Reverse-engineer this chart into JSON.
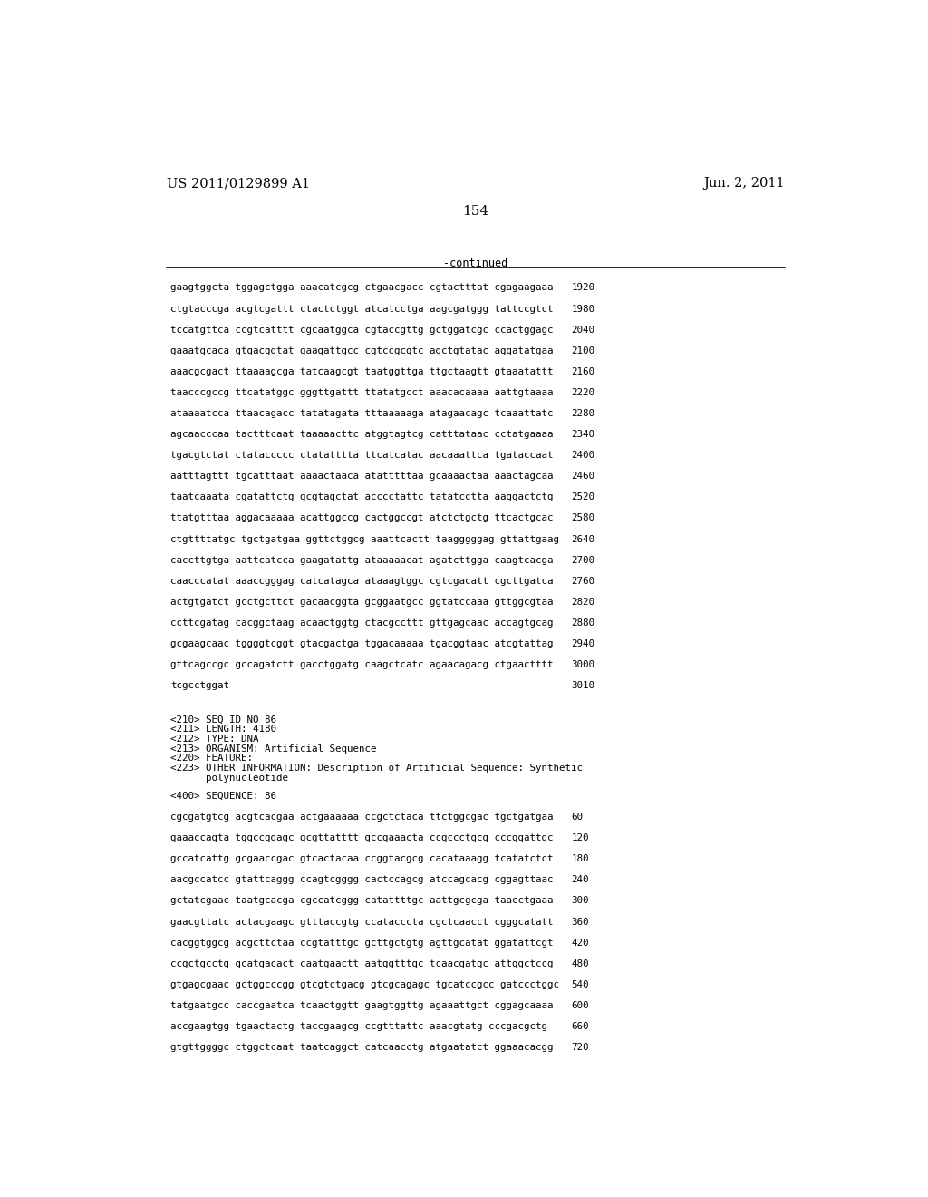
{
  "header_left": "US 2011/0129899 A1",
  "header_right": "Jun. 2, 2011",
  "page_number": "154",
  "continued_label": "-continued",
  "background_color": "#ffffff",
  "text_color": "#000000",
  "sequence_lines_top": [
    [
      "gaagtggcta tggagctgga aaacatcgcg ctgaacgacc cgtactttat cgagaagaaa",
      "1920"
    ],
    [
      "ctgtacccga acgtcgattt ctactctggt atcatcctga aagcgatggg tattccgtct",
      "1980"
    ],
    [
      "tccatgttca ccgtcatttt cgcaatggca cgtaccgttg gctggatcgc ccactggagc",
      "2040"
    ],
    [
      "gaaatgcaca gtgacggtat gaagattgcc cgtccgcgtc agctgtatac aggatatgaa",
      "2100"
    ],
    [
      "aaacgcgact ttaaaagcga tatcaagcgt taatggttga ttgctaagtt gtaaatattt",
      "2160"
    ],
    [
      "taacccgccg ttcatatggc gggttgattt ttatatgcct aaacacaaaa aattgtaaaa",
      "2220"
    ],
    [
      "ataaaatcca ttaacagacc tatatagata tttaaaaaga atagaacagc tcaaattatc",
      "2280"
    ],
    [
      "agcaacccaa tactttcaat taaaaacttc atggtagtcg catttataac cctatgaaaa",
      "2340"
    ],
    [
      "tgacgtctat ctataccccc ctatatttta ttcatcatac aacaaattca tgataccaat",
      "2400"
    ],
    [
      "aatttagttt tgcatttaat aaaactaaca atatttttaa gcaaaactaa aaactagcaa",
      "2460"
    ],
    [
      "taatcaaata cgatattctg gcgtagctat acccctattc tatatcctta aaggactctg",
      "2520"
    ],
    [
      "ttatgtttaa aggacaaaaa acattggccg cactggccgt atctctgctg ttcactgcac",
      "2580"
    ],
    [
      "ctgttttatgc tgctgatgaa ggttctggcg aaattcactt taagggggag gttattgaag",
      "2640"
    ],
    [
      "caccttgtga aattcatcca gaagatattg ataaaaacat agatcttgga caagtcacga",
      "2700"
    ],
    [
      "caacccatat aaaccgggag catcatagca ataaagtggc cgtcgacatt cgcttgatca",
      "2760"
    ],
    [
      "actgtgatct gcctgcttct gacaacggta gcggaatgcc ggtatccaaa gttggcgtaa",
      "2820"
    ],
    [
      "ccttcgatag cacggctaag acaactggtg ctacgccttt gttgagcaac accagtgcag",
      "2880"
    ],
    [
      "gcgaagcaac tggggtcggt gtacgactga tggacaaaaa tgacggtaac atcgtattag",
      "2940"
    ],
    [
      "gttcagccgc gccagatctt gacctggatg caagctcatc agaacagacg ctgaactttt",
      "3000"
    ],
    [
      "tcgcctggat",
      "3010"
    ]
  ],
  "metadata_lines": [
    "<210> SEQ ID NO 86",
    "<211> LENGTH: 4180",
    "<212> TYPE: DNA",
    "<213> ORGANISM: Artificial Sequence",
    "<220> FEATURE:",
    "<223> OTHER INFORMATION: Description of Artificial Sequence: Synthetic",
    "      polynucleotide"
  ],
  "sequence_label": "<400> SEQUENCE: 86",
  "sequence_lines_bottom": [
    [
      "cgcgatgtcg acgtcacgaa actgaaaaaa ccgctctaca ttctggcgac tgctgatgaa",
      "60"
    ],
    [
      "gaaaccagta tggccggagc gcgttatttt gccgaaacta ccgccctgcg cccggattgc",
      "120"
    ],
    [
      "gccatcattg gcgaaccgac gtcactacaa ccggtacgcg cacataaagg tcatatctct",
      "180"
    ],
    [
      "aacgccatcc gtattcaggg ccagtcgggg cactccagcg atccagcacg cggagttaac",
      "240"
    ],
    [
      "gctatcgaac taatgcacga cgccatcggg catattttgc aattgcgcga taacctgaaa",
      "300"
    ],
    [
      "gaacgttatc actacgaagc gtttaccgtg ccatacccta cgctcaacct cgggcatatt",
      "360"
    ],
    [
      "cacggtggcg acgcttctaa ccgtatttgc gcttgctgtg agttgcatat ggatattcgt",
      "420"
    ],
    [
      "ccgctgcctg gcatgacact caatgaactt aatggtttgc tcaacgatgc attggctccg",
      "480"
    ],
    [
      "gtgagcgaac gctggcccgg gtcgtctgacg gtcgcagagc tgcatccgcc gatccctggc",
      "540"
    ],
    [
      "tatgaatgcc caccgaatca tcaactggtt gaagtggttg agaaattgct cggagcaaaa",
      "600"
    ],
    [
      "accgaagtgg tgaactactg taccgaagcg ccgtttattc aaacgtatg cccgacgctg",
      "660"
    ],
    [
      "gtgttggggc ctggctcaat taatcaggct catcaacctg atgaatatct ggaaacacgg",
      "720"
    ]
  ]
}
